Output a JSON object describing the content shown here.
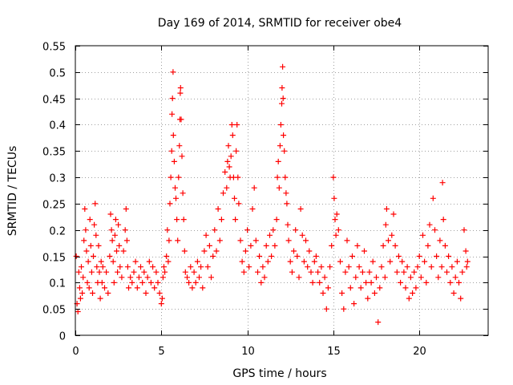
{
  "chart_data": {
    "type": "scatter",
    "title": "Day 169 of 2014, SRMTID for receiver obe4",
    "xlabel": "GPS time / hours",
    "ylabel": "SRMTID / TECUs",
    "xlim": [
      0,
      24
    ],
    "ylim": [
      0,
      0.55
    ],
    "xticks": [
      0,
      5,
      10,
      15,
      20
    ],
    "xtick_labels": [
      "0",
      "5",
      "10",
      "15",
      "20"
    ],
    "yticks": [
      0,
      0.05,
      0.1,
      0.15,
      0.2,
      0.25,
      0.3,
      0.35,
      0.4,
      0.45,
      0.5,
      0.55
    ],
    "ytick_labels": [
      "0",
      "0.05",
      "0.1",
      "0.15",
      "0.2",
      "0.25",
      "0.3",
      "0.35",
      "0.4",
      "0.45",
      "0.5",
      "0.55"
    ],
    "grid": true,
    "marker": "+",
    "color": "#ff0000",
    "series": [
      {
        "name": "SRMTID",
        "points": [
          [
            0.05,
            0.15
          ],
          [
            0.1,
            0.06
          ],
          [
            0.15,
            0.045
          ],
          [
            0.2,
            0.12
          ],
          [
            0.25,
            0.09
          ],
          [
            0.3,
            0.07
          ],
          [
            0.35,
            0.13
          ],
          [
            0.4,
            0.08
          ],
          [
            0.45,
            0.11
          ],
          [
            0.5,
            0.18
          ],
          [
            0.55,
            0.24
          ],
          [
            0.6,
            0.2
          ],
          [
            0.65,
            0.16
          ],
          [
            0.7,
            0.1
          ],
          [
            0.75,
            0.14
          ],
          [
            0.8,
            0.09
          ],
          [
            0.85,
            0.22
          ],
          [
            0.9,
            0.17
          ],
          [
            0.95,
            0.12
          ],
          [
            1.0,
            0.08
          ],
          [
            1.05,
            0.15
          ],
          [
            1.1,
            0.21
          ],
          [
            1.15,
            0.25
          ],
          [
            1.2,
            0.19
          ],
          [
            1.25,
            0.13
          ],
          [
            1.3,
            0.1
          ],
          [
            1.35,
            0.17
          ],
          [
            1.4,
            0.12
          ],
          [
            1.45,
            0.07
          ],
          [
            1.5,
            0.14
          ],
          [
            1.55,
            0.1
          ],
          [
            1.6,
            0.13
          ],
          [
            1.7,
            0.09
          ],
          [
            1.8,
            0.12
          ],
          [
            1.9,
            0.08
          ],
          [
            2.0,
            0.15
          ],
          [
            2.05,
            0.23
          ],
          [
            2.1,
            0.2
          ],
          [
            2.15,
            0.18
          ],
          [
            2.2,
            0.14
          ],
          [
            2.25,
            0.1
          ],
          [
            2.3,
            0.19
          ],
          [
            2.35,
            0.22
          ],
          [
            2.4,
            0.16
          ],
          [
            2.45,
            0.12
          ],
          [
            2.5,
            0.21
          ],
          [
            2.55,
            0.17
          ],
          [
            2.6,
            0.13
          ],
          [
            2.7,
            0.11
          ],
          [
            2.8,
            0.16
          ],
          [
            2.9,
            0.2
          ],
          [
            2.95,
            0.24
          ],
          [
            3.0,
            0.18
          ],
          [
            3.05,
            0.13
          ],
          [
            3.1,
            0.09
          ],
          [
            3.2,
            0.11
          ],
          [
            3.3,
            0.1
          ],
          [
            3.4,
            0.12
          ],
          [
            3.5,
            0.14
          ],
          [
            3.6,
            0.09
          ],
          [
            3.7,
            0.11
          ],
          [
            3.8,
            0.13
          ],
          [
            3.9,
            0.1
          ],
          [
            4.0,
            0.12
          ],
          [
            4.1,
            0.08
          ],
          [
            4.2,
            0.11
          ],
          [
            4.3,
            0.14
          ],
          [
            4.4,
            0.1
          ],
          [
            4.5,
            0.13
          ],
          [
            4.6,
            0.09
          ],
          [
            4.7,
            0.12
          ],
          [
            4.8,
            0.1
          ],
          [
            4.9,
            0.08
          ],
          [
            5.0,
            0.06
          ],
          [
            5.05,
            0.07
          ],
          [
            5.1,
            0.11
          ],
          [
            5.15,
            0.13
          ],
          [
            5.2,
            0.12
          ],
          [
            5.3,
            0.15
          ],
          [
            5.35,
            0.2
          ],
          [
            5.4,
            0.14
          ],
          [
            5.45,
            0.18
          ],
          [
            5.5,
            0.25
          ],
          [
            5.55,
            0.3
          ],
          [
            5.6,
            0.35
          ],
          [
            5.62,
            0.42
          ],
          [
            5.65,
            0.45
          ],
          [
            5.68,
            0.5
          ],
          [
            5.7,
            0.38
          ],
          [
            5.75,
            0.33
          ],
          [
            5.8,
            0.28
          ],
          [
            5.85,
            0.26
          ],
          [
            5.9,
            0.22
          ],
          [
            5.95,
            0.18
          ],
          [
            6.0,
            0.3
          ],
          [
            6.05,
            0.36
          ],
          [
            6.08,
            0.41
          ],
          [
            6.1,
            0.46
          ],
          [
            6.12,
            0.47
          ],
          [
            6.15,
            0.41
          ],
          [
            6.2,
            0.34
          ],
          [
            6.25,
            0.27
          ],
          [
            6.3,
            0.22
          ],
          [
            6.35,
            0.16
          ],
          [
            6.4,
            0.12
          ],
          [
            6.5,
            0.11
          ],
          [
            6.6,
            0.1
          ],
          [
            6.7,
            0.13
          ],
          [
            6.8,
            0.09
          ],
          [
            6.9,
            0.12
          ],
          [
            7.0,
            0.1
          ],
          [
            7.1,
            0.14
          ],
          [
            7.2,
            0.11
          ],
          [
            7.3,
            0.13
          ],
          [
            7.4,
            0.09
          ],
          [
            7.5,
            0.16
          ],
          [
            7.6,
            0.19
          ],
          [
            7.7,
            0.13
          ],
          [
            7.8,
            0.17
          ],
          [
            7.9,
            0.11
          ],
          [
            8.0,
            0.15
          ],
          [
            8.1,
            0.2
          ],
          [
            8.2,
            0.16
          ],
          [
            8.3,
            0.24
          ],
          [
            8.4,
            0.18
          ],
          [
            8.5,
            0.22
          ],
          [
            8.6,
            0.27
          ],
          [
            8.7,
            0.31
          ],
          [
            8.8,
            0.28
          ],
          [
            8.85,
            0.33
          ],
          [
            8.9,
            0.36
          ],
          [
            8.95,
            0.32
          ],
          [
            9.0,
            0.3
          ],
          [
            9.05,
            0.34
          ],
          [
            9.1,
            0.4
          ],
          [
            9.15,
            0.38
          ],
          [
            9.2,
            0.3
          ],
          [
            9.25,
            0.26
          ],
          [
            9.3,
            0.22
          ],
          [
            9.35,
            0.35
          ],
          [
            9.4,
            0.4
          ],
          [
            9.45,
            0.3
          ],
          [
            9.5,
            0.25
          ],
          [
            9.6,
            0.18
          ],
          [
            9.7,
            0.14
          ],
          [
            9.8,
            0.12
          ],
          [
            9.9,
            0.16
          ],
          [
            10.0,
            0.2
          ],
          [
            10.1,
            0.13
          ],
          [
            10.2,
            0.17
          ],
          [
            10.3,
            0.24
          ],
          [
            10.4,
            0.28
          ],
          [
            10.5,
            0.18
          ],
          [
            10.6,
            0.12
          ],
          [
            10.7,
            0.15
          ],
          [
            10.8,
            0.1
          ],
          [
            10.9,
            0.13
          ],
          [
            11.0,
            0.11
          ],
          [
            11.1,
            0.17
          ],
          [
            11.2,
            0.14
          ],
          [
            11.3,
            0.19
          ],
          [
            11.4,
            0.15
          ],
          [
            11.5,
            0.2
          ],
          [
            11.6,
            0.17
          ],
          [
            11.7,
            0.22
          ],
          [
            11.75,
            0.3
          ],
          [
            11.8,
            0.33
          ],
          [
            11.85,
            0.28
          ],
          [
            11.9,
            0.36
          ],
          [
            11.95,
            0.4
          ],
          [
            12.0,
            0.44
          ],
          [
            12.02,
            0.47
          ],
          [
            12.05,
            0.51
          ],
          [
            12.08,
            0.45
          ],
          [
            12.1,
            0.38
          ],
          [
            12.15,
            0.35
          ],
          [
            12.2,
            0.3
          ],
          [
            12.25,
            0.27
          ],
          [
            12.3,
            0.25
          ],
          [
            12.35,
            0.21
          ],
          [
            12.4,
            0.18
          ],
          [
            12.5,
            0.14
          ],
          [
            12.6,
            0.12
          ],
          [
            12.7,
            0.16
          ],
          [
            12.8,
            0.2
          ],
          [
            12.9,
            0.15
          ],
          [
            13.0,
            0.11
          ],
          [
            13.1,
            0.24
          ],
          [
            13.2,
            0.19
          ],
          [
            13.3,
            0.14
          ],
          [
            13.4,
            0.18
          ],
          [
            13.5,
            0.13
          ],
          [
            13.6,
            0.16
          ],
          [
            13.7,
            0.12
          ],
          [
            13.8,
            0.1
          ],
          [
            13.9,
            0.14
          ],
          [
            14.0,
            0.15
          ],
          [
            14.1,
            0.12
          ],
          [
            14.2,
            0.1
          ],
          [
            14.3,
            0.13
          ],
          [
            14.4,
            0.08
          ],
          [
            14.5,
            0.11
          ],
          [
            14.6,
            0.05
          ],
          [
            14.7,
            0.09
          ],
          [
            14.8,
            0.13
          ],
          [
            14.9,
            0.17
          ],
          [
            15.0,
            0.3
          ],
          [
            15.05,
            0.26
          ],
          [
            15.1,
            0.22
          ],
          [
            15.15,
            0.19
          ],
          [
            15.2,
            0.23
          ],
          [
            15.3,
            0.2
          ],
          [
            15.4,
            0.14
          ],
          [
            15.5,
            0.08
          ],
          [
            15.6,
            0.05
          ],
          [
            15.7,
            0.12
          ],
          [
            15.8,
            0.18
          ],
          [
            15.9,
            0.13
          ],
          [
            16.0,
            0.09
          ],
          [
            16.1,
            0.15
          ],
          [
            16.2,
            0.06
          ],
          [
            16.3,
            0.11
          ],
          [
            16.4,
            0.17
          ],
          [
            16.5,
            0.13
          ],
          [
            16.6,
            0.09
          ],
          [
            16.7,
            0.12
          ],
          [
            16.8,
            0.16
          ],
          [
            16.9,
            0.1
          ],
          [
            17.0,
            0.07
          ],
          [
            17.1,
            0.12
          ],
          [
            17.2,
            0.1
          ],
          [
            17.3,
            0.14
          ],
          [
            17.4,
            0.08
          ],
          [
            17.5,
            0.11
          ],
          [
            17.6,
            0.025
          ],
          [
            17.7,
            0.09
          ],
          [
            17.8,
            0.13
          ],
          [
            17.9,
            0.17
          ],
          [
            18.0,
            0.11
          ],
          [
            18.05,
            0.21
          ],
          [
            18.1,
            0.24
          ],
          [
            18.2,
            0.18
          ],
          [
            18.3,
            0.14
          ],
          [
            18.4,
            0.19
          ],
          [
            18.5,
            0.23
          ],
          [
            18.6,
            0.17
          ],
          [
            18.7,
            0.12
          ],
          [
            18.8,
            0.15
          ],
          [
            18.9,
            0.1
          ],
          [
            19.0,
            0.14
          ],
          [
            19.1,
            0.12
          ],
          [
            19.2,
            0.09
          ],
          [
            19.3,
            0.13
          ],
          [
            19.4,
            0.07
          ],
          [
            19.5,
            0.11
          ],
          [
            19.6,
            0.08
          ],
          [
            19.7,
            0.12
          ],
          [
            19.8,
            0.09
          ],
          [
            19.9,
            0.13
          ],
          [
            20.0,
            0.15
          ],
          [
            20.1,
            0.11
          ],
          [
            20.2,
            0.19
          ],
          [
            20.3,
            0.14
          ],
          [
            20.4,
            0.1
          ],
          [
            20.5,
            0.17
          ],
          [
            20.6,
            0.21
          ],
          [
            20.7,
            0.13
          ],
          [
            20.8,
            0.26
          ],
          [
            20.9,
            0.2
          ],
          [
            21.0,
            0.15
          ],
          [
            21.1,
            0.11
          ],
          [
            21.2,
            0.18
          ],
          [
            21.3,
            0.13
          ],
          [
            21.35,
            0.29
          ],
          [
            21.4,
            0.22
          ],
          [
            21.5,
            0.17
          ],
          [
            21.6,
            0.12
          ],
          [
            21.7,
            0.15
          ],
          [
            21.8,
            0.1
          ],
          [
            21.9,
            0.13
          ],
          [
            22.0,
            0.08
          ],
          [
            22.1,
            0.11
          ],
          [
            22.2,
            0.14
          ],
          [
            22.3,
            0.1
          ],
          [
            22.4,
            0.07
          ],
          [
            22.5,
            0.12
          ],
          [
            22.6,
            0.2
          ],
          [
            22.7,
            0.16
          ],
          [
            22.75,
            0.13
          ],
          [
            22.8,
            0.14
          ]
        ]
      }
    ]
  }
}
